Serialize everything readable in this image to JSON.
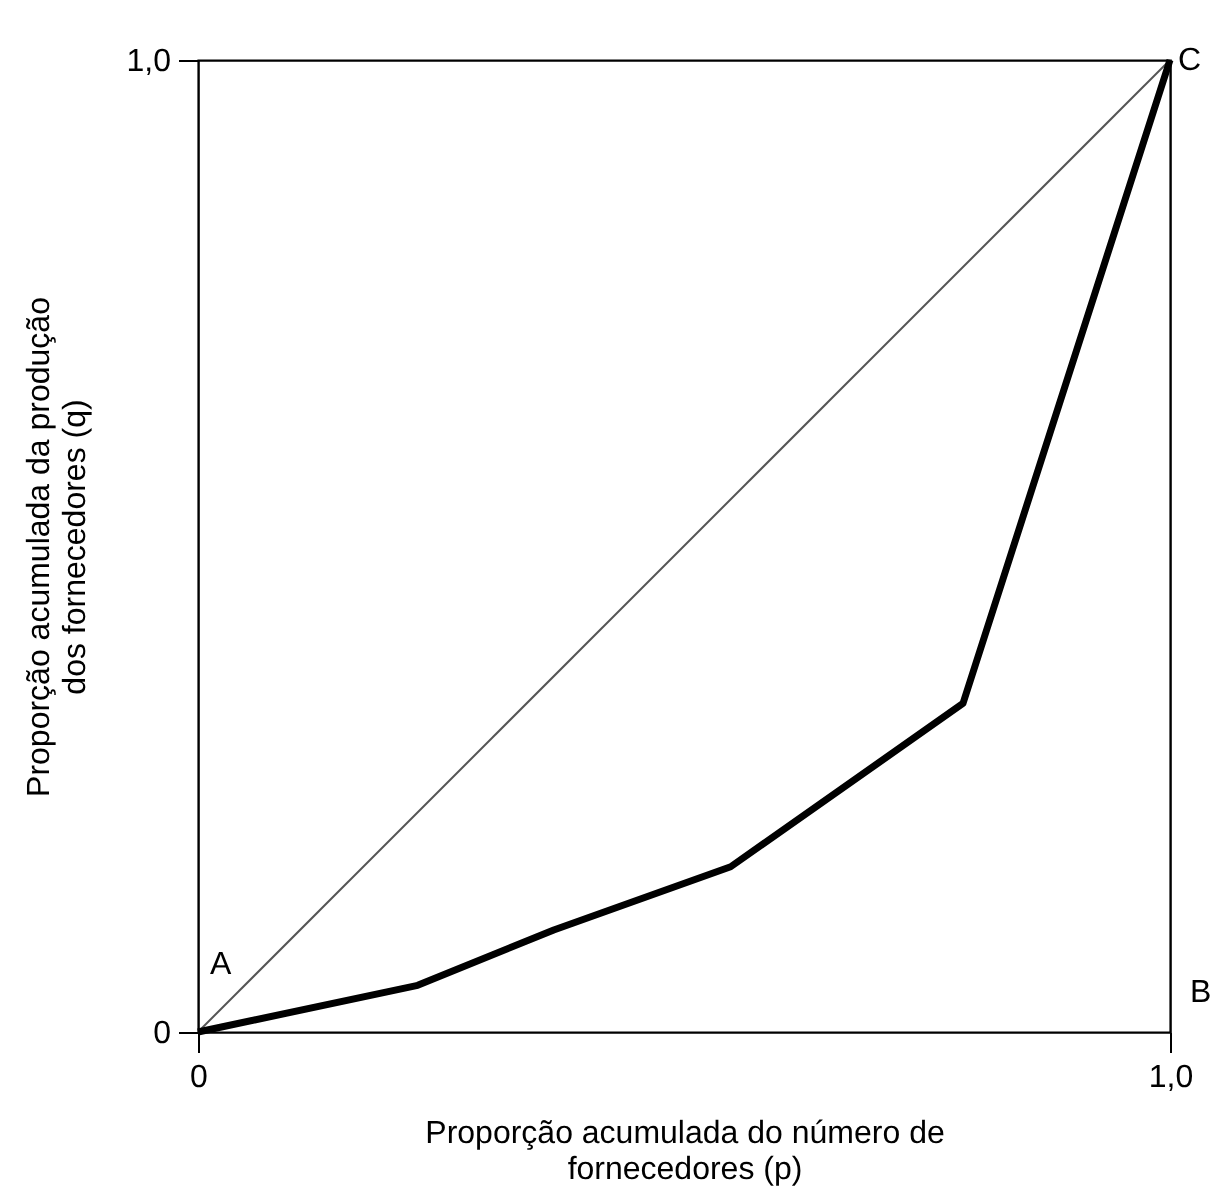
{
  "chart_data": {
    "type": "line",
    "xlabel": "Proporção acumulada do número de fornecedores (p)",
    "ylabel": "Proporção acumulada da produção dos fornecedores (q)",
    "xlim": [
      0,
      1
    ],
    "ylim": [
      0,
      1
    ],
    "xticks": [
      0,
      {
        "value": 1,
        "label": "1,0"
      }
    ],
    "yticks": [
      0,
      {
        "value": 1,
        "label": "1,0"
      }
    ],
    "grid": false,
    "marker": "none",
    "series": [
      {
        "color": "#555555",
        "x": [
          0,
          1
        ],
        "values": [
          0,
          1
        ]
      },
      {
        "color": "#000000",
        "x": [
          0,
          0.226,
          0.366,
          0.548,
          0.787,
          1
        ],
        "values": [
          0,
          0.048,
          0.105,
          0.17,
          0.338,
          1
        ]
      }
    ],
    "annotations": [
      "A",
      "B",
      "C"
    ]
  }
}
